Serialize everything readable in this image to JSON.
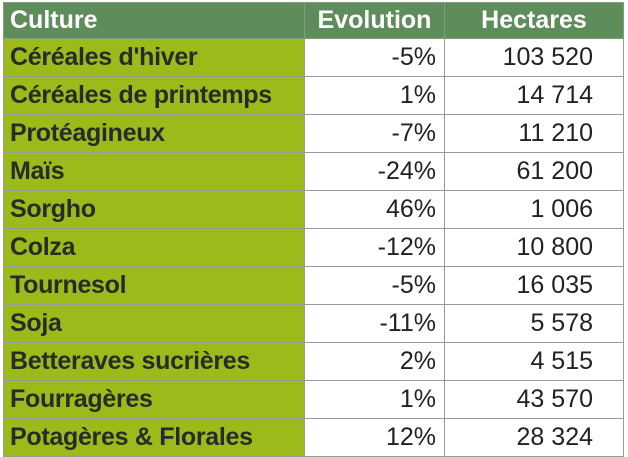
{
  "table": {
    "headers": {
      "culture": "Culture",
      "evolution": "Evolution",
      "hectares": "Hectares"
    },
    "rows": [
      {
        "culture": "Céréales d'hiver",
        "evolution": "-5%",
        "hectares": "103 520"
      },
      {
        "culture": "Céréales de printemps",
        "evolution": "1%",
        "hectares": "14 714"
      },
      {
        "culture": "Protéagineux",
        "evolution": "-7%",
        "hectares": "11 210"
      },
      {
        "culture": "Maïs",
        "evolution": "-24%",
        "hectares": "61 200"
      },
      {
        "culture": "Sorgho",
        "evolution": "46%",
        "hectares": "1 006"
      },
      {
        "culture": "Colza",
        "evolution": "-12%",
        "hectares": "10 800"
      },
      {
        "culture": "Tournesol",
        "evolution": "-5%",
        "hectares": "16 035"
      },
      {
        "culture": "Soja",
        "evolution": "-11%",
        "hectares": "5 578"
      },
      {
        "culture": "Betteraves sucrières",
        "evolution": "2%",
        "hectares": "4 515"
      },
      {
        "culture": "Fourragères",
        "evolution": "1%",
        "hectares": "43 570"
      },
      {
        "culture": "Potagères & Florales",
        "evolution": "12%",
        "hectares": "28 324"
      }
    ]
  },
  "colors": {
    "header_bg": "#5e8c5a",
    "label_bg": "#9bbb1a",
    "cell_bg": "#ffffff"
  }
}
